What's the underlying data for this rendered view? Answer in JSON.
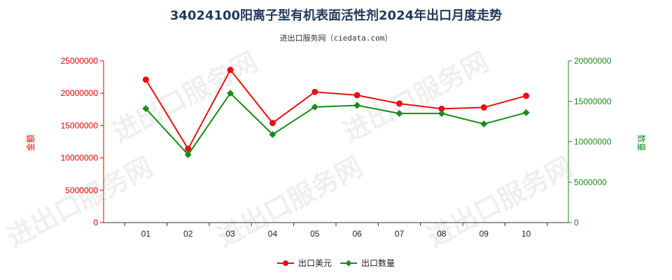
{
  "chart_data": {
    "type": "line",
    "title": "34024100阳离子型有机表面活性剂2024年出口月度走势",
    "subtitle": "进出口服务网（ciedata.com）",
    "categories": [
      "01",
      "02",
      "03",
      "04",
      "05",
      "06",
      "07",
      "08",
      "09",
      "10"
    ],
    "left_axis": {
      "label": "金额",
      "range": [
        0,
        25000000
      ],
      "ticks": [
        "0",
        "5000000",
        "10000000",
        "15000000",
        "20000000",
        "25000000"
      ],
      "color": "#e00000"
    },
    "right_axis": {
      "label": "数量",
      "range": [
        0,
        20000000
      ],
      "ticks": [
        "0",
        "5000000",
        "10000000",
        "15000000",
        "20000000"
      ],
      "color": "#1a8c1a"
    },
    "series": [
      {
        "name": "出口美元",
        "axis": "left",
        "color": "#e81010",
        "marker": "circle",
        "values": [
          22100000,
          11400000,
          23600000,
          15400000,
          20200000,
          19700000,
          18400000,
          17600000,
          17800000,
          19600000
        ]
      },
      {
        "name": "出口数量",
        "axis": "right",
        "color": "#1a8c1a",
        "marker": "diamond",
        "values": [
          14100000,
          8400000,
          16000000,
          10900000,
          14300000,
          14500000,
          13500000,
          13500000,
          12200000,
          13600000
        ]
      }
    ],
    "legend_position": "bottom-center",
    "watermark": "进出口服务网",
    "grid": false
  }
}
